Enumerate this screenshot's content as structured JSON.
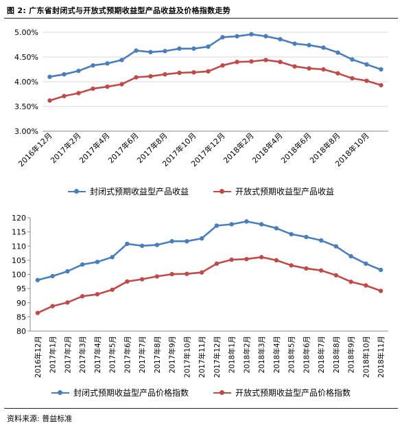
{
  "figure_title": "图 2:  广东省封闭式与开放式预期收益型产品收益及价格指数走势",
  "source": "资料来源:  普益标准",
  "colors": {
    "blue": "#4a7ebb",
    "red": "#be4b48"
  },
  "chart_data": [
    {
      "type": "line",
      "categories": [
        "2016年12月",
        "2017年1月",
        "2017年2月",
        "2017年3月",
        "2017年4月",
        "2017年5月",
        "2017年6月",
        "2017年7月",
        "2017年8月",
        "2017年9月",
        "2017年10月",
        "2017年11月",
        "2017年12月",
        "2018年1月",
        "2018年2月",
        "2018年3月",
        "2018年4月",
        "2018年5月",
        "2018年6月",
        "2018年7月",
        "2018年8月",
        "2018年9月",
        "2018年10月",
        "2018年11月"
      ],
      "tick_labels": [
        "2016年12月",
        "2017年2月",
        "2017年4月",
        "2017年6月",
        "2017年8月",
        "2017年10月",
        "2017年12月",
        "2018年2月",
        "2018年4月",
        "2018年6月",
        "2018年8月",
        "2018年10月"
      ],
      "y_tick_labels": [
        "3.00%",
        "3.50%",
        "4.00%",
        "4.50%",
        "5.00%"
      ],
      "ylim": [
        3.0,
        5.0
      ],
      "y_step": 0.5,
      "y_unit": "%",
      "grid": true,
      "legend_position": "bottom",
      "series": [
        {
          "name": "封闭式预期收益型产品收益",
          "color": "#4a7ebb",
          "values": [
            4.1,
            4.15,
            4.22,
            4.33,
            4.37,
            4.44,
            4.63,
            4.6,
            4.62,
            4.67,
            4.67,
            4.71,
            4.9,
            4.92,
            4.96,
            4.92,
            4.86,
            4.77,
            4.74,
            4.69,
            4.59,
            4.45,
            4.35,
            4.25
          ]
        },
        {
          "name": "开放式预期收益型产品收益",
          "color": "#be4b48",
          "values": [
            3.62,
            3.71,
            3.77,
            3.86,
            3.9,
            3.95,
            4.09,
            4.11,
            4.15,
            4.18,
            4.19,
            4.21,
            4.33,
            4.4,
            4.41,
            4.44,
            4.4,
            4.31,
            4.27,
            4.25,
            4.17,
            4.07,
            4.02,
            3.93
          ]
        }
      ]
    },
    {
      "type": "line",
      "categories": [
        "2016年12月",
        "2017年1月",
        "2017年2月",
        "2017年3月",
        "2017年4月",
        "2017年5月",
        "2017年6月",
        "2017年7月",
        "2017年8月",
        "2017年9月",
        "2017年10月",
        "2017年11月",
        "2017年12月",
        "2018年1月",
        "2018年2月",
        "2018年3月",
        "2018年4月",
        "2018年5月",
        "2018年6月",
        "2018年7月",
        "2018年8月",
        "2018年9月",
        "2018年10月",
        "2018年11月"
      ],
      "tick_labels": [
        "2016年12月",
        "2017年1月",
        "2017年2月",
        "2017年3月",
        "2017年4月",
        "2017年5月",
        "2017年6月",
        "2017年7月",
        "2017年8月",
        "2017年9月",
        "2017年10月",
        "2017年11月",
        "2017年12月",
        "2018年1月",
        "2018年2月",
        "2018年3月",
        "2018年4月",
        "2018年5月",
        "2018年6月",
        "2018年7月",
        "2018年8月",
        "2018年9月",
        "2018年10月",
        "2018年11月"
      ],
      "y_tick_labels": [
        "80",
        "85",
        "90",
        "95",
        "100",
        "105",
        "110",
        "115",
        "120"
      ],
      "ylim": [
        80,
        120
      ],
      "y_step": 5,
      "grid": false,
      "legend_position": "bottom",
      "series": [
        {
          "name": "封闭式预期收益型产品价格指数",
          "color": "#4a7ebb",
          "values": [
            98.0,
            99.4,
            101.1,
            103.5,
            104.4,
            106.1,
            110.8,
            110.1,
            110.4,
            111.7,
            111.7,
            112.7,
            117.2,
            117.7,
            118.7,
            117.7,
            116.3,
            114.2,
            113.2,
            112.0,
            109.9,
            106.4,
            103.8,
            101.6
          ]
        },
        {
          "name": "开放式预期收益型产品价格指数",
          "color": "#be4b48",
          "values": [
            86.4,
            88.8,
            90.1,
            92.3,
            93.0,
            94.6,
            97.5,
            98.3,
            99.3,
            100.1,
            100.2,
            100.7,
            103.8,
            105.2,
            105.4,
            106.1,
            105.0,
            103.2,
            102.1,
            101.4,
            99.7,
            97.4,
            96.1,
            94.2
          ]
        }
      ]
    }
  ]
}
